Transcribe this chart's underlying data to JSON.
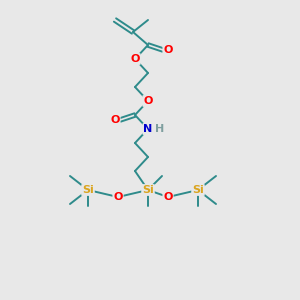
{
  "bg_color": "#e8e8e8",
  "atom_colors": {
    "C": "#2e8b8b",
    "O": "#ff0000",
    "N": "#0000cd",
    "H": "#7f9f9f",
    "Si": "#daa520"
  },
  "bond_color": "#2e8b8b",
  "figsize": [
    3.0,
    3.0
  ],
  "dpi": 100,
  "lw": 1.4
}
